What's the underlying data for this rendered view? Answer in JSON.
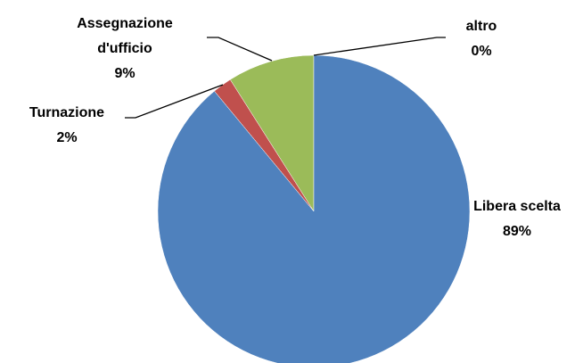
{
  "chart_data": {
    "type": "pie",
    "categories": [
      "Libera scelta",
      "Turnazione",
      "Assegnazione d'ufficio",
      "altro"
    ],
    "values": [
      89,
      2,
      9,
      0
    ],
    "value_labels": [
      "89%",
      "2%",
      "9%",
      "0%"
    ],
    "colors": [
      "#4f81bd",
      "#c0504d",
      "#9bbb59",
      "#8064a2"
    ]
  }
}
